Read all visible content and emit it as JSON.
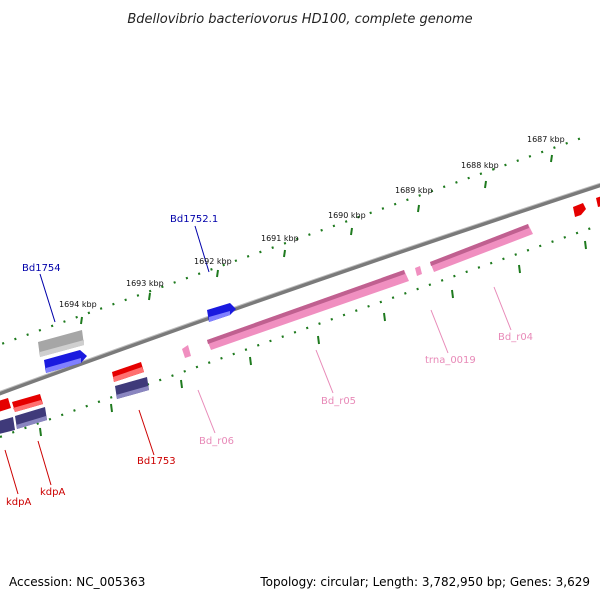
{
  "title": "Bdellovibrio bacteriovorus HD100, complete genome",
  "footer": {
    "accession": "Accession: NC_005363",
    "summary": "Topology: circular; Length: 3,782,950 bp; Genes: 3,629"
  },
  "scale_labels": [
    "1687 kbp",
    "1688 kbp",
    "1689 kbp",
    "1690 kbp",
    "1691 kbp",
    "1692 kbp",
    "1693 kbp",
    "1694 kbp"
  ],
  "feature_labels": {
    "bd1752_1": "Bd1752.1",
    "bd1754": "Bd1754",
    "bd1753": "Bd1753",
    "kdpA_1": "kdpA",
    "kdpA_2": "kdpA",
    "bd_r04": "Bd_r04",
    "bd_r05": "Bd_r05",
    "bd_r06": "Bd_r06",
    "trna_0019": "trna_0019"
  },
  "colors": {
    "backbone": "#7a7a7a",
    "ticks": "#1e7a1e",
    "cds_blue": "#1a1adf",
    "cds_red": "#e50000",
    "cds_purple": "#3f3a7a",
    "cds_gray": "#a6a6a6",
    "rrna_pink": "#f08fc0",
    "label_blue": "#0000aa",
    "label_red": "#cc0000",
    "label_pink": "#e88ab8"
  }
}
